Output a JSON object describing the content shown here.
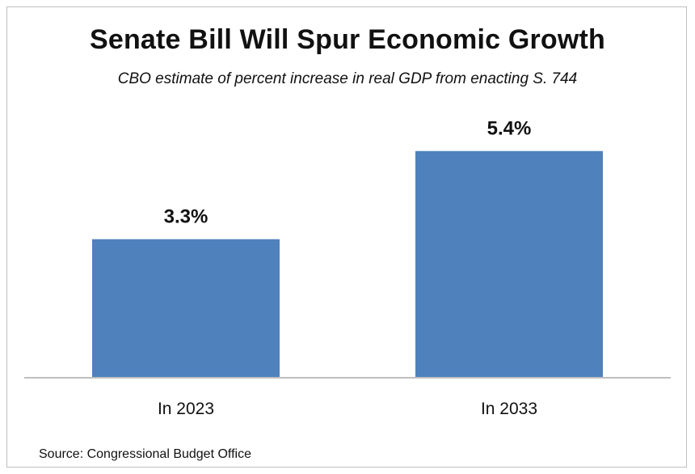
{
  "chart_data": {
    "type": "bar",
    "title": "Senate Bill Will Spur Economic Growth",
    "subtitle": "CBO estimate of percent increase in real GDP from enacting S. 744",
    "categories": [
      "In 2023",
      "In 2033"
    ],
    "values": [
      3.3,
      5.4
    ],
    "data_labels": [
      "3.3%",
      "5.4%"
    ],
    "unit": "%",
    "ylim": [
      0,
      6.3
    ],
    "grid": false,
    "legend": "none",
    "bar_color": "#4f81bd",
    "source": "Source: Congressional Budget Office"
  }
}
